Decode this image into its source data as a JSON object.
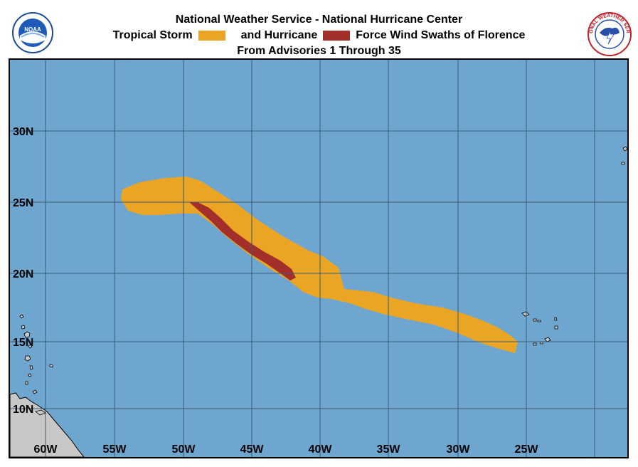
{
  "title": {
    "line1": "National Weather Service - National Hurricane Center",
    "ts_label": "Tropical Storm",
    "hu_label": "and Hurricane",
    "swath_label": "Force Wind Swaths of Florence",
    "line3": "From Advisories 1 Through 35"
  },
  "logos": {
    "left_text": "NOAA",
    "right_text": "NATIONAL WEATHER SERVICE"
  },
  "colors": {
    "ocean": "#6ea6cf",
    "land": "#c8c8c8",
    "tropical_storm": "#eba524",
    "hurricane": "#a32f2a",
    "grid": "#3f5a72"
  },
  "latitude_labels": [
    "30N",
    "25N",
    "20N",
    "15N",
    "10N"
  ],
  "longitude_labels": [
    "60W",
    "55W",
    "50W",
    "45W",
    "40W",
    "35W",
    "30W",
    "25W"
  ],
  "storm_name": "Florence",
  "advisories": [
    1,
    35
  ]
}
